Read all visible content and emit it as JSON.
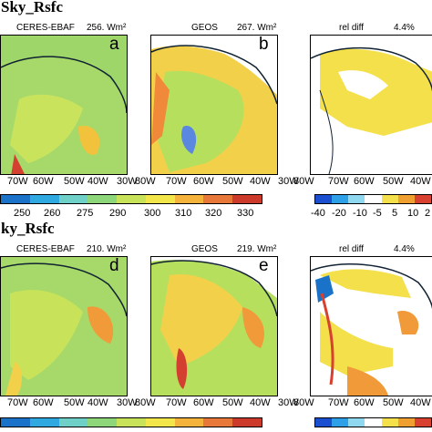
{
  "rows": [
    {
      "title": "Sky_Rsfc",
      "panels": [
        {
          "name": "CERES-EBAF",
          "value": "256. Wm²",
          "letter": "a"
        },
        {
          "name": "GEOS",
          "value": "267. Wm²",
          "letter": "b"
        },
        {
          "name": "rel diff",
          "value": "4.4%",
          "letter": ""
        }
      ],
      "lon_ticks": [
        "80W",
        "70W",
        "60W",
        "50W",
        "40W",
        "30W"
      ],
      "colorbar_abs": [
        "250",
        "260",
        "275",
        "290",
        "300",
        "310",
        "320",
        "330"
      ],
      "colorbar_diff": [
        "-40",
        "-20",
        "-10",
        "-5",
        "5",
        "10",
        "2"
      ]
    },
    {
      "title": "ky_Rsfc",
      "panels": [
        {
          "name": "CERES-EBAF",
          "value": "210. Wm²",
          "letter": "d"
        },
        {
          "name": "GEOS",
          "value": "219. Wm²",
          "letter": "e"
        },
        {
          "name": "rel diff",
          "value": "4.4%",
          "letter": ""
        }
      ],
      "lon_ticks": [
        "80W",
        "70W",
        "60W",
        "50W",
        "40W",
        "30W"
      ]
    }
  ],
  "colors": {
    "abs": [
      "#1a73c8",
      "#2fa9e0",
      "#6fd0c8",
      "#8ed67a",
      "#c8e35a",
      "#f3e64a",
      "#f4b43c",
      "#e8783a",
      "#cc3a2c"
    ],
    "diff": [
      "#1a4fd0",
      "#2ea0e8",
      "#8fd8f0",
      "#ffffff",
      "#f4e04a",
      "#f0a030",
      "#d84030"
    ]
  }
}
